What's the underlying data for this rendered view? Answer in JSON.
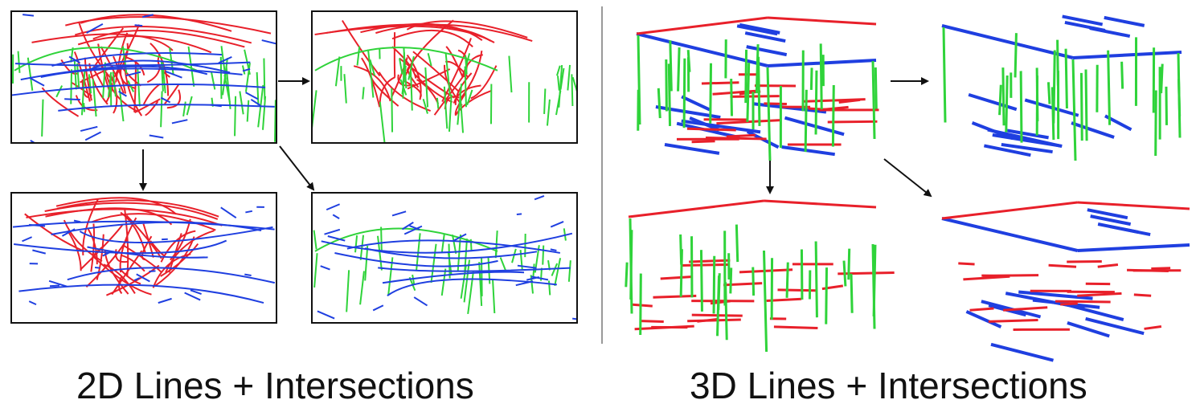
{
  "captions": {
    "left": "2D Lines + Intersections",
    "right": "3D Lines + Intersections"
  },
  "colors": {
    "red": "#e8202a",
    "green": "#2fd33a",
    "blue": "#1f3fe0",
    "frame": "#111111",
    "divider": "#999999",
    "arrow": "#111111"
  },
  "panels_2d": [
    {
      "id": "all-lines",
      "colors": [
        "red",
        "green",
        "blue"
      ]
    },
    {
      "id": "red-green-lines",
      "colors": [
        "red",
        "green"
      ]
    },
    {
      "id": "red-blue-lines",
      "colors": [
        "red",
        "blue"
      ]
    },
    {
      "id": "green-blue-lines",
      "colors": [
        "green",
        "blue"
      ]
    }
  ],
  "scenes_3d": [
    {
      "id": "all-lines",
      "colors": [
        "red",
        "green",
        "blue"
      ]
    },
    {
      "id": "green-blue-lines",
      "colors": [
        "green",
        "blue"
      ]
    },
    {
      "id": "red-green-lines",
      "colors": [
        "red",
        "green"
      ]
    },
    {
      "id": "red-blue-lines",
      "colors": [
        "red",
        "blue"
      ]
    }
  ]
}
